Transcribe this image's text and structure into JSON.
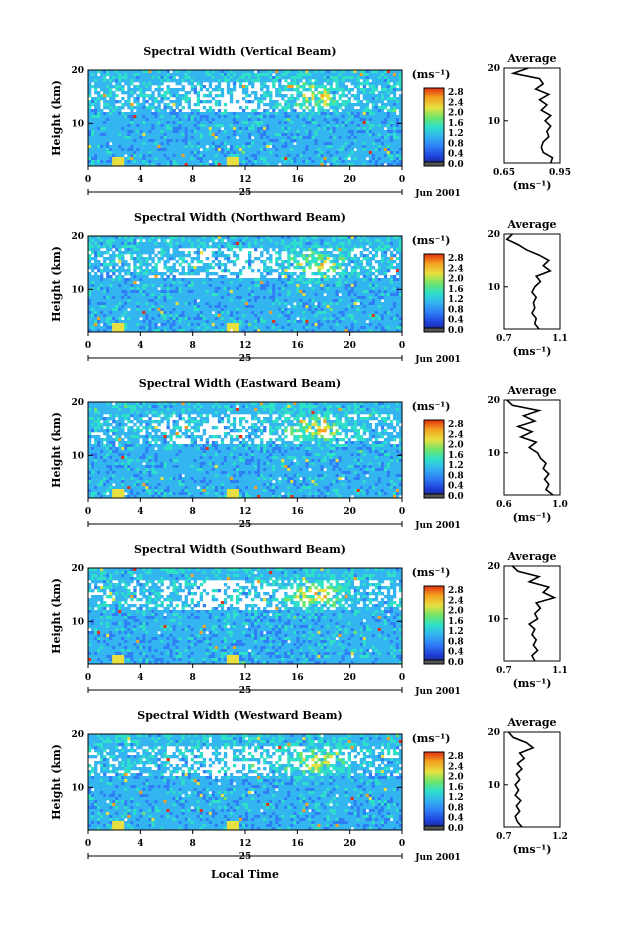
{
  "x_axis_label": "Local Time",
  "colorbar_ticks": [
    "0.0",
    "0.4",
    "0.8",
    "1.2",
    "1.6",
    "2.0",
    "2.4",
    "2.8"
  ],
  "colorbar_unit": "(ms⁻¹)",
  "colors": {
    "colormap": [
      "#1a237e",
      "#1e40d8",
      "#2f7ef6",
      "#33b5f0",
      "#2fe0c8",
      "#6ee46a",
      "#e8e040",
      "#f4a020",
      "#e23010"
    ],
    "background": "#3a6ce0"
  },
  "chart_data": [
    {
      "type": "heatmap",
      "title": "Spectral Width (Vertical Beam)",
      "ylabel": "Height (km)",
      "y_ticks": [
        "20",
        "10"
      ],
      "x_ticks": [
        "0",
        "4",
        "8",
        "12",
        "16",
        "20",
        "0"
      ],
      "date_mid_label": "25",
      "date_right_label": "Jun 2001",
      "xlim": [
        0,
        24
      ],
      "ylim": [
        2,
        20
      ],
      "zlim": [
        0.0,
        3.0
      ],
      "z_unit": "ms-1",
      "profile": {
        "title": "Average",
        "xlabel": "(ms⁻¹)",
        "x_ticks": [
          "0.65",
          "0.95"
        ],
        "xlim": [
          0.65,
          0.95
        ],
        "y_ticks": [
          "20",
          "10"
        ],
        "height": [
          2,
          3,
          4,
          5,
          6,
          7,
          8,
          9,
          10,
          11,
          12,
          13,
          14,
          15,
          16,
          17,
          18,
          19,
          20
        ],
        "value": [
          0.9,
          0.91,
          0.86,
          0.85,
          0.86,
          0.89,
          0.88,
          0.9,
          0.87,
          0.9,
          0.85,
          0.88,
          0.84,
          0.89,
          0.82,
          0.86,
          0.84,
          0.7,
          0.78
        ]
      }
    },
    {
      "type": "heatmap",
      "title": "Spectral Width (Northward Beam)",
      "ylabel": "Height (km)",
      "y_ticks": [
        "20",
        "10"
      ],
      "x_ticks": [
        "0",
        "4",
        "8",
        "12",
        "16",
        "20",
        "0"
      ],
      "date_mid_label": "25",
      "date_right_label": "Jun 2001",
      "xlim": [
        0,
        24
      ],
      "ylim": [
        2,
        20
      ],
      "zlim": [
        0.0,
        3.0
      ],
      "z_unit": "ms-1",
      "profile": {
        "title": "Average",
        "xlabel": "(ms⁻¹)",
        "x_ticks": [
          "0.7",
          "1.1"
        ],
        "xlim": [
          0.7,
          1.1
        ],
        "y_ticks": [
          "20",
          "10"
        ],
        "height": [
          2,
          3,
          4,
          5,
          6,
          7,
          8,
          9,
          10,
          11,
          12,
          13,
          14,
          15,
          16,
          17,
          18,
          19,
          20
        ],
        "value": [
          0.95,
          0.92,
          0.93,
          0.9,
          0.92,
          0.91,
          0.93,
          0.9,
          0.92,
          0.96,
          0.93,
          1.03,
          0.98,
          1.02,
          0.95,
          0.86,
          0.8,
          0.72,
          0.76
        ]
      }
    },
    {
      "type": "heatmap",
      "title": "Spectral Width (Eastward Beam)",
      "ylabel": "Height (km)",
      "y_ticks": [
        "20",
        "10"
      ],
      "x_ticks": [
        "0",
        "4",
        "8",
        "12",
        "16",
        "20",
        "0"
      ],
      "date_mid_label": "25",
      "date_right_label": "Jun 2001",
      "xlim": [
        0,
        24
      ],
      "ylim": [
        2,
        20
      ],
      "zlim": [
        0.0,
        3.0
      ],
      "z_unit": "ms-1",
      "profile": {
        "title": "Average",
        "xlabel": "(ms⁻¹)",
        "x_ticks": [
          "0.6",
          "1.0"
        ],
        "xlim": [
          0.6,
          1.0
        ],
        "y_ticks": [
          "20",
          "10"
        ],
        "height": [
          2,
          3,
          4,
          5,
          6,
          7,
          8,
          9,
          10,
          11,
          12,
          13,
          14,
          15,
          16,
          17,
          18,
          19,
          20
        ],
        "value": [
          0.95,
          0.9,
          0.92,
          0.89,
          0.92,
          0.88,
          0.9,
          0.86,
          0.84,
          0.78,
          0.83,
          0.72,
          0.8,
          0.7,
          0.82,
          0.74,
          0.85,
          0.66,
          0.62
        ]
      }
    },
    {
      "type": "heatmap",
      "title": "Spectral Width (Southward Beam)",
      "ylabel": "Height (km)",
      "y_ticks": [
        "20",
        "10"
      ],
      "x_ticks": [
        "0",
        "4",
        "8",
        "12",
        "16",
        "20",
        "0"
      ],
      "date_mid_label": "25",
      "date_right_label": "Jun 2001",
      "xlim": [
        0,
        24
      ],
      "ylim": [
        2,
        20
      ],
      "zlim": [
        0.0,
        3.0
      ],
      "z_unit": "ms-1",
      "profile": {
        "title": "Average",
        "xlabel": "(ms⁻¹)",
        "x_ticks": [
          "0.7",
          "1.1"
        ],
        "xlim": [
          0.7,
          1.1
        ],
        "y_ticks": [
          "20",
          "10"
        ],
        "height": [
          2,
          3,
          4,
          5,
          6,
          7,
          8,
          9,
          10,
          11,
          12,
          13,
          14,
          15,
          16,
          17,
          18,
          19,
          20
        ],
        "value": [
          0.92,
          0.9,
          0.94,
          0.91,
          0.93,
          0.9,
          0.92,
          0.88,
          0.94,
          0.92,
          0.96,
          0.93,
          1.06,
          0.98,
          1.02,
          0.88,
          0.95,
          0.8,
          0.76
        ]
      }
    },
    {
      "type": "heatmap",
      "title": "Spectral Width (Westward Beam)",
      "ylabel": "Height (km)",
      "y_ticks": [
        "20",
        "10"
      ],
      "x_ticks": [
        "0",
        "4",
        "8",
        "12",
        "16",
        "20",
        "0"
      ],
      "date_mid_label": "25",
      "date_right_label": "Jun 2001",
      "xlim": [
        0,
        24
      ],
      "ylim": [
        2,
        20
      ],
      "zlim": [
        0.0,
        3.0
      ],
      "z_unit": "ms-1",
      "profile": {
        "title": "Average",
        "xlabel": "(ms⁻¹)",
        "x_ticks": [
          "0.7",
          "1.2"
        ],
        "xlim": [
          0.7,
          1.2
        ],
        "y_ticks": [
          "20",
          "10"
        ],
        "height": [
          2,
          3,
          4,
          5,
          6,
          7,
          8,
          9,
          10,
          11,
          12,
          13,
          14,
          15,
          16,
          17,
          18,
          19,
          20
        ],
        "value": [
          0.86,
          0.82,
          0.8,
          0.84,
          0.81,
          0.85,
          0.8,
          0.83,
          0.8,
          0.84,
          0.81,
          0.86,
          0.82,
          0.88,
          0.84,
          0.96,
          0.9,
          0.78,
          0.74
        ]
      }
    }
  ]
}
